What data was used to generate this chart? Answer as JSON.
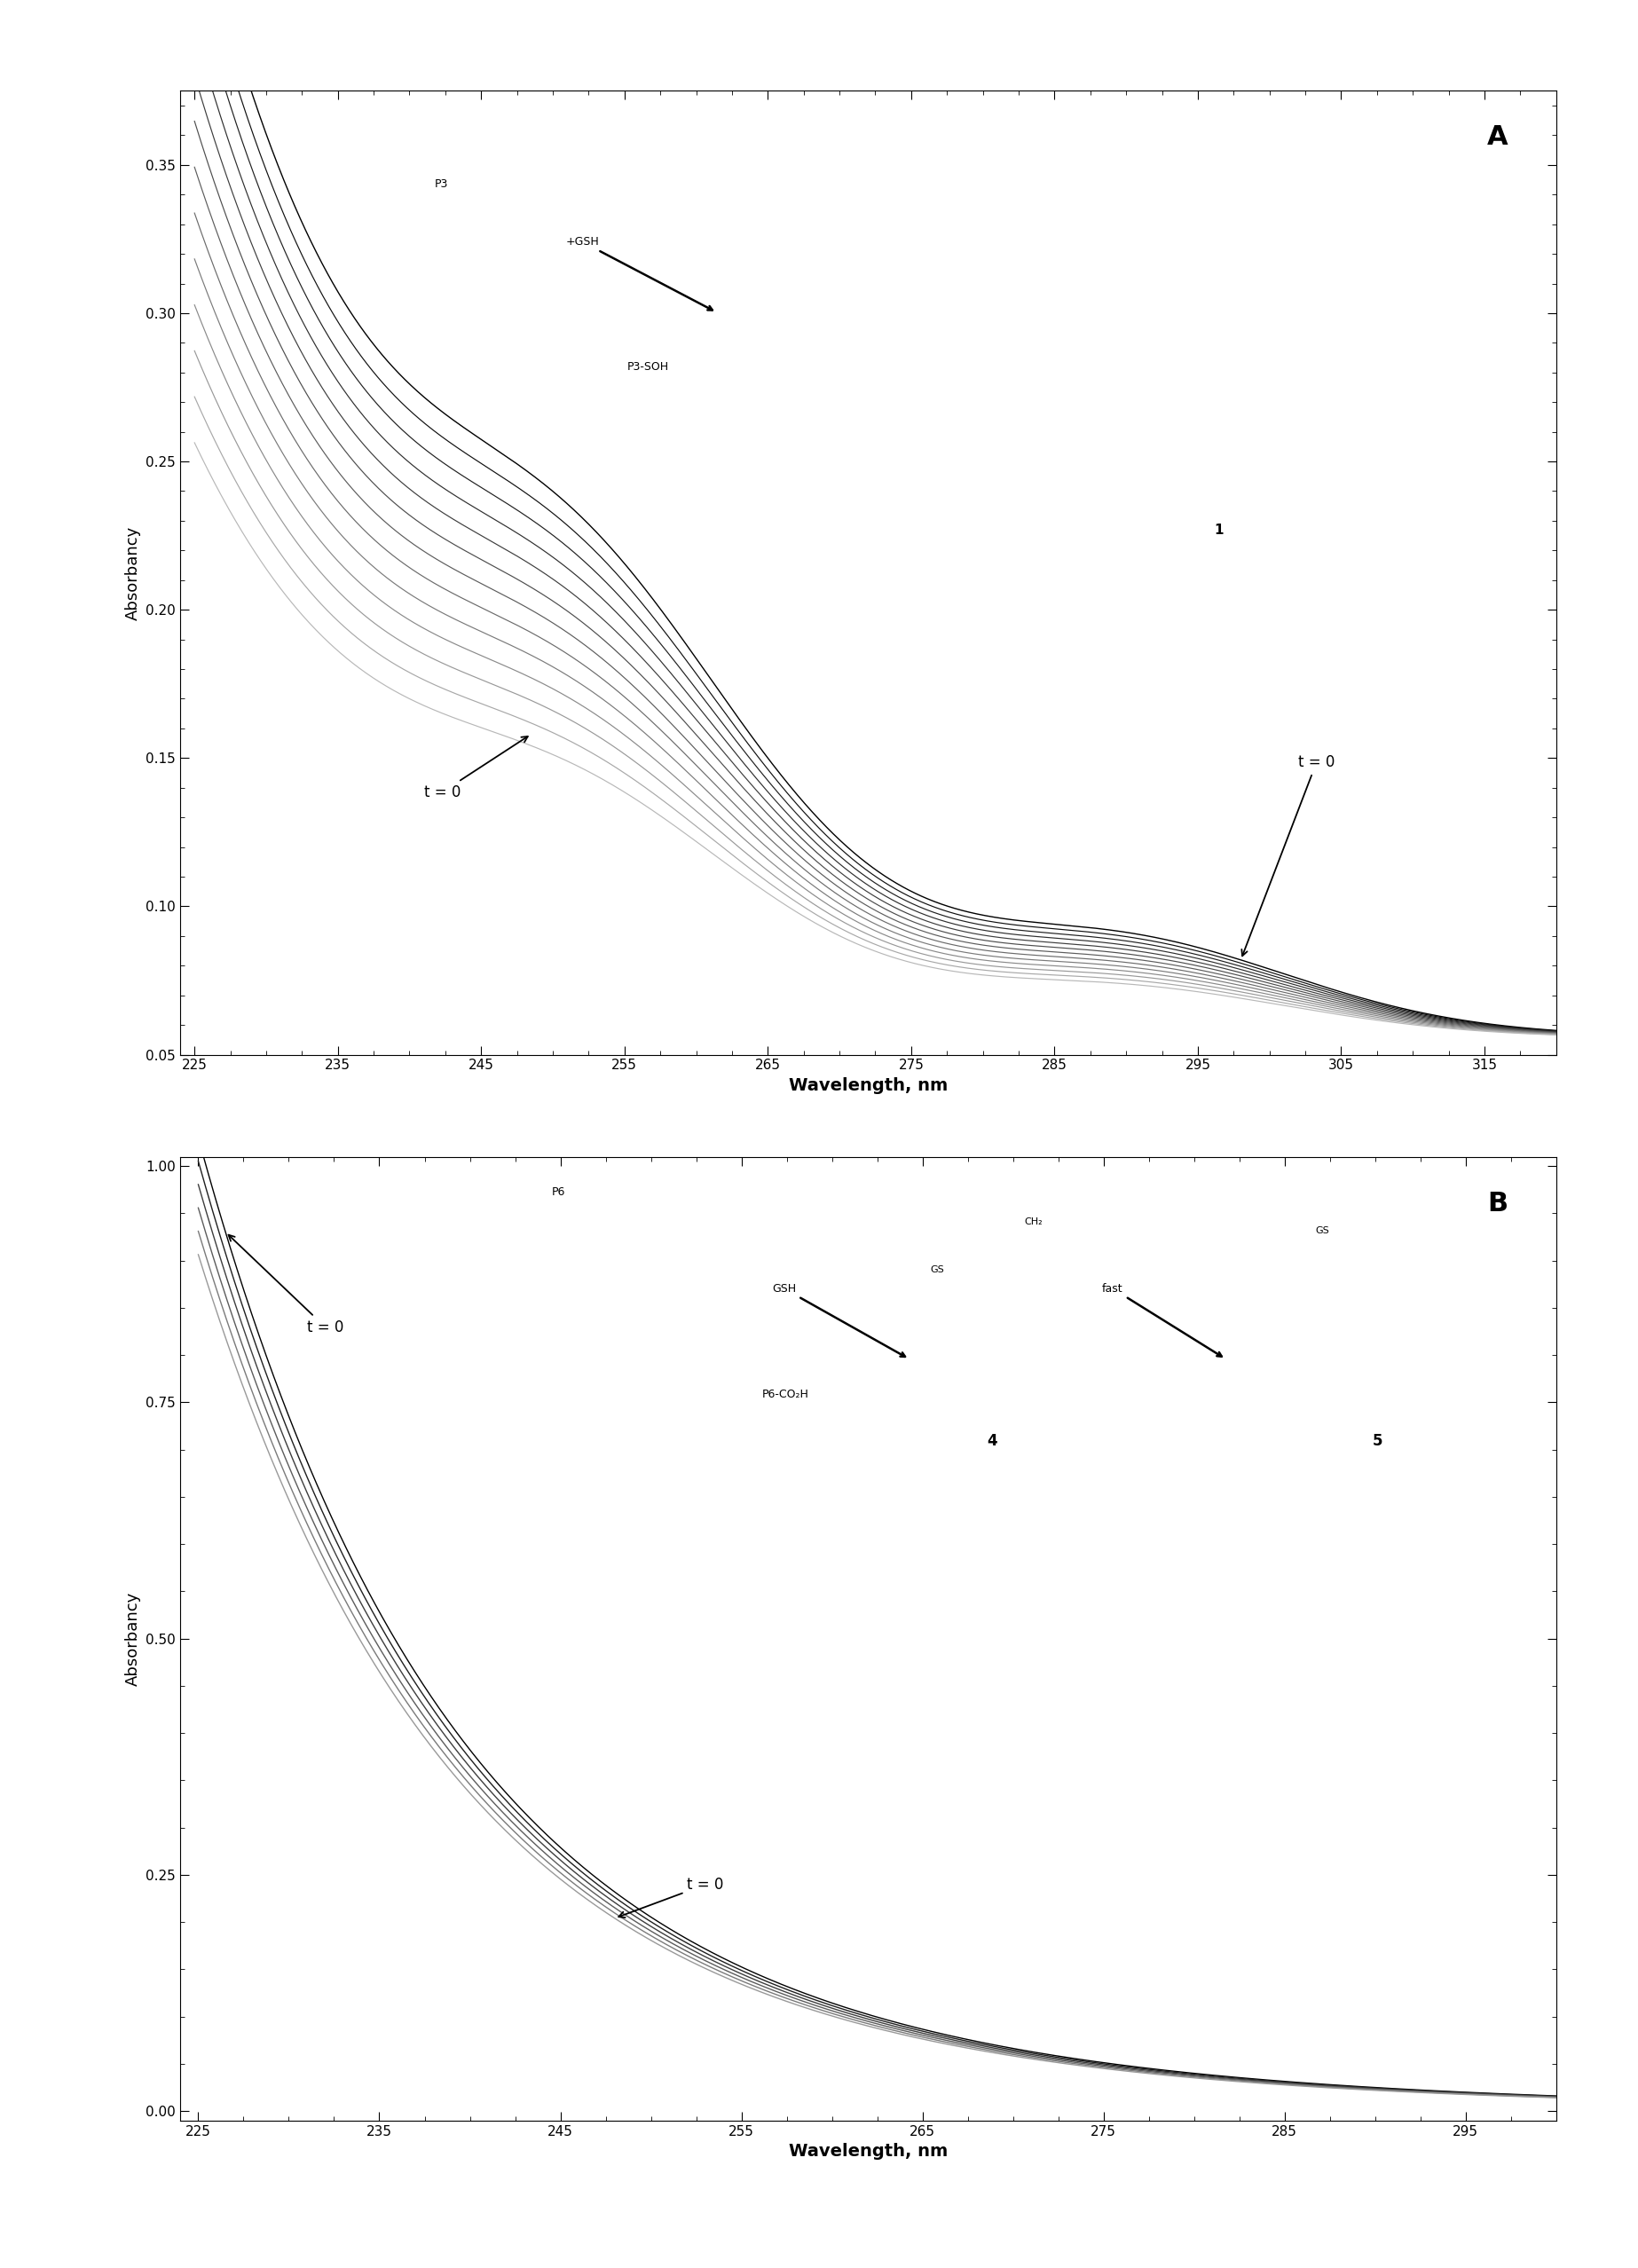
{
  "panel_A": {
    "xlim": [
      224,
      320
    ],
    "ylim": [
      0.05,
      0.375
    ],
    "xticks": [
      225,
      235,
      245,
      255,
      265,
      275,
      285,
      295,
      305,
      315
    ],
    "yticks": [
      0.05,
      0.1,
      0.15,
      0.2,
      0.25,
      0.3,
      0.35
    ],
    "xlabel": "Wavelength, nm",
    "ylabel": "Absorbancy",
    "label": "A",
    "n_curves": 13
  },
  "panel_B": {
    "xlim": [
      224,
      300
    ],
    "ylim": [
      -0.01,
      1.01
    ],
    "xticks": [
      225,
      235,
      245,
      255,
      265,
      275,
      285,
      295
    ],
    "yticks": [
      0.0,
      0.25,
      0.5,
      0.75,
      1.0
    ],
    "xlabel": "Wavelength, nm",
    "ylabel": "Absorbancy",
    "label": "B",
    "n_curves": 6
  },
  "background_color": "#ffffff"
}
